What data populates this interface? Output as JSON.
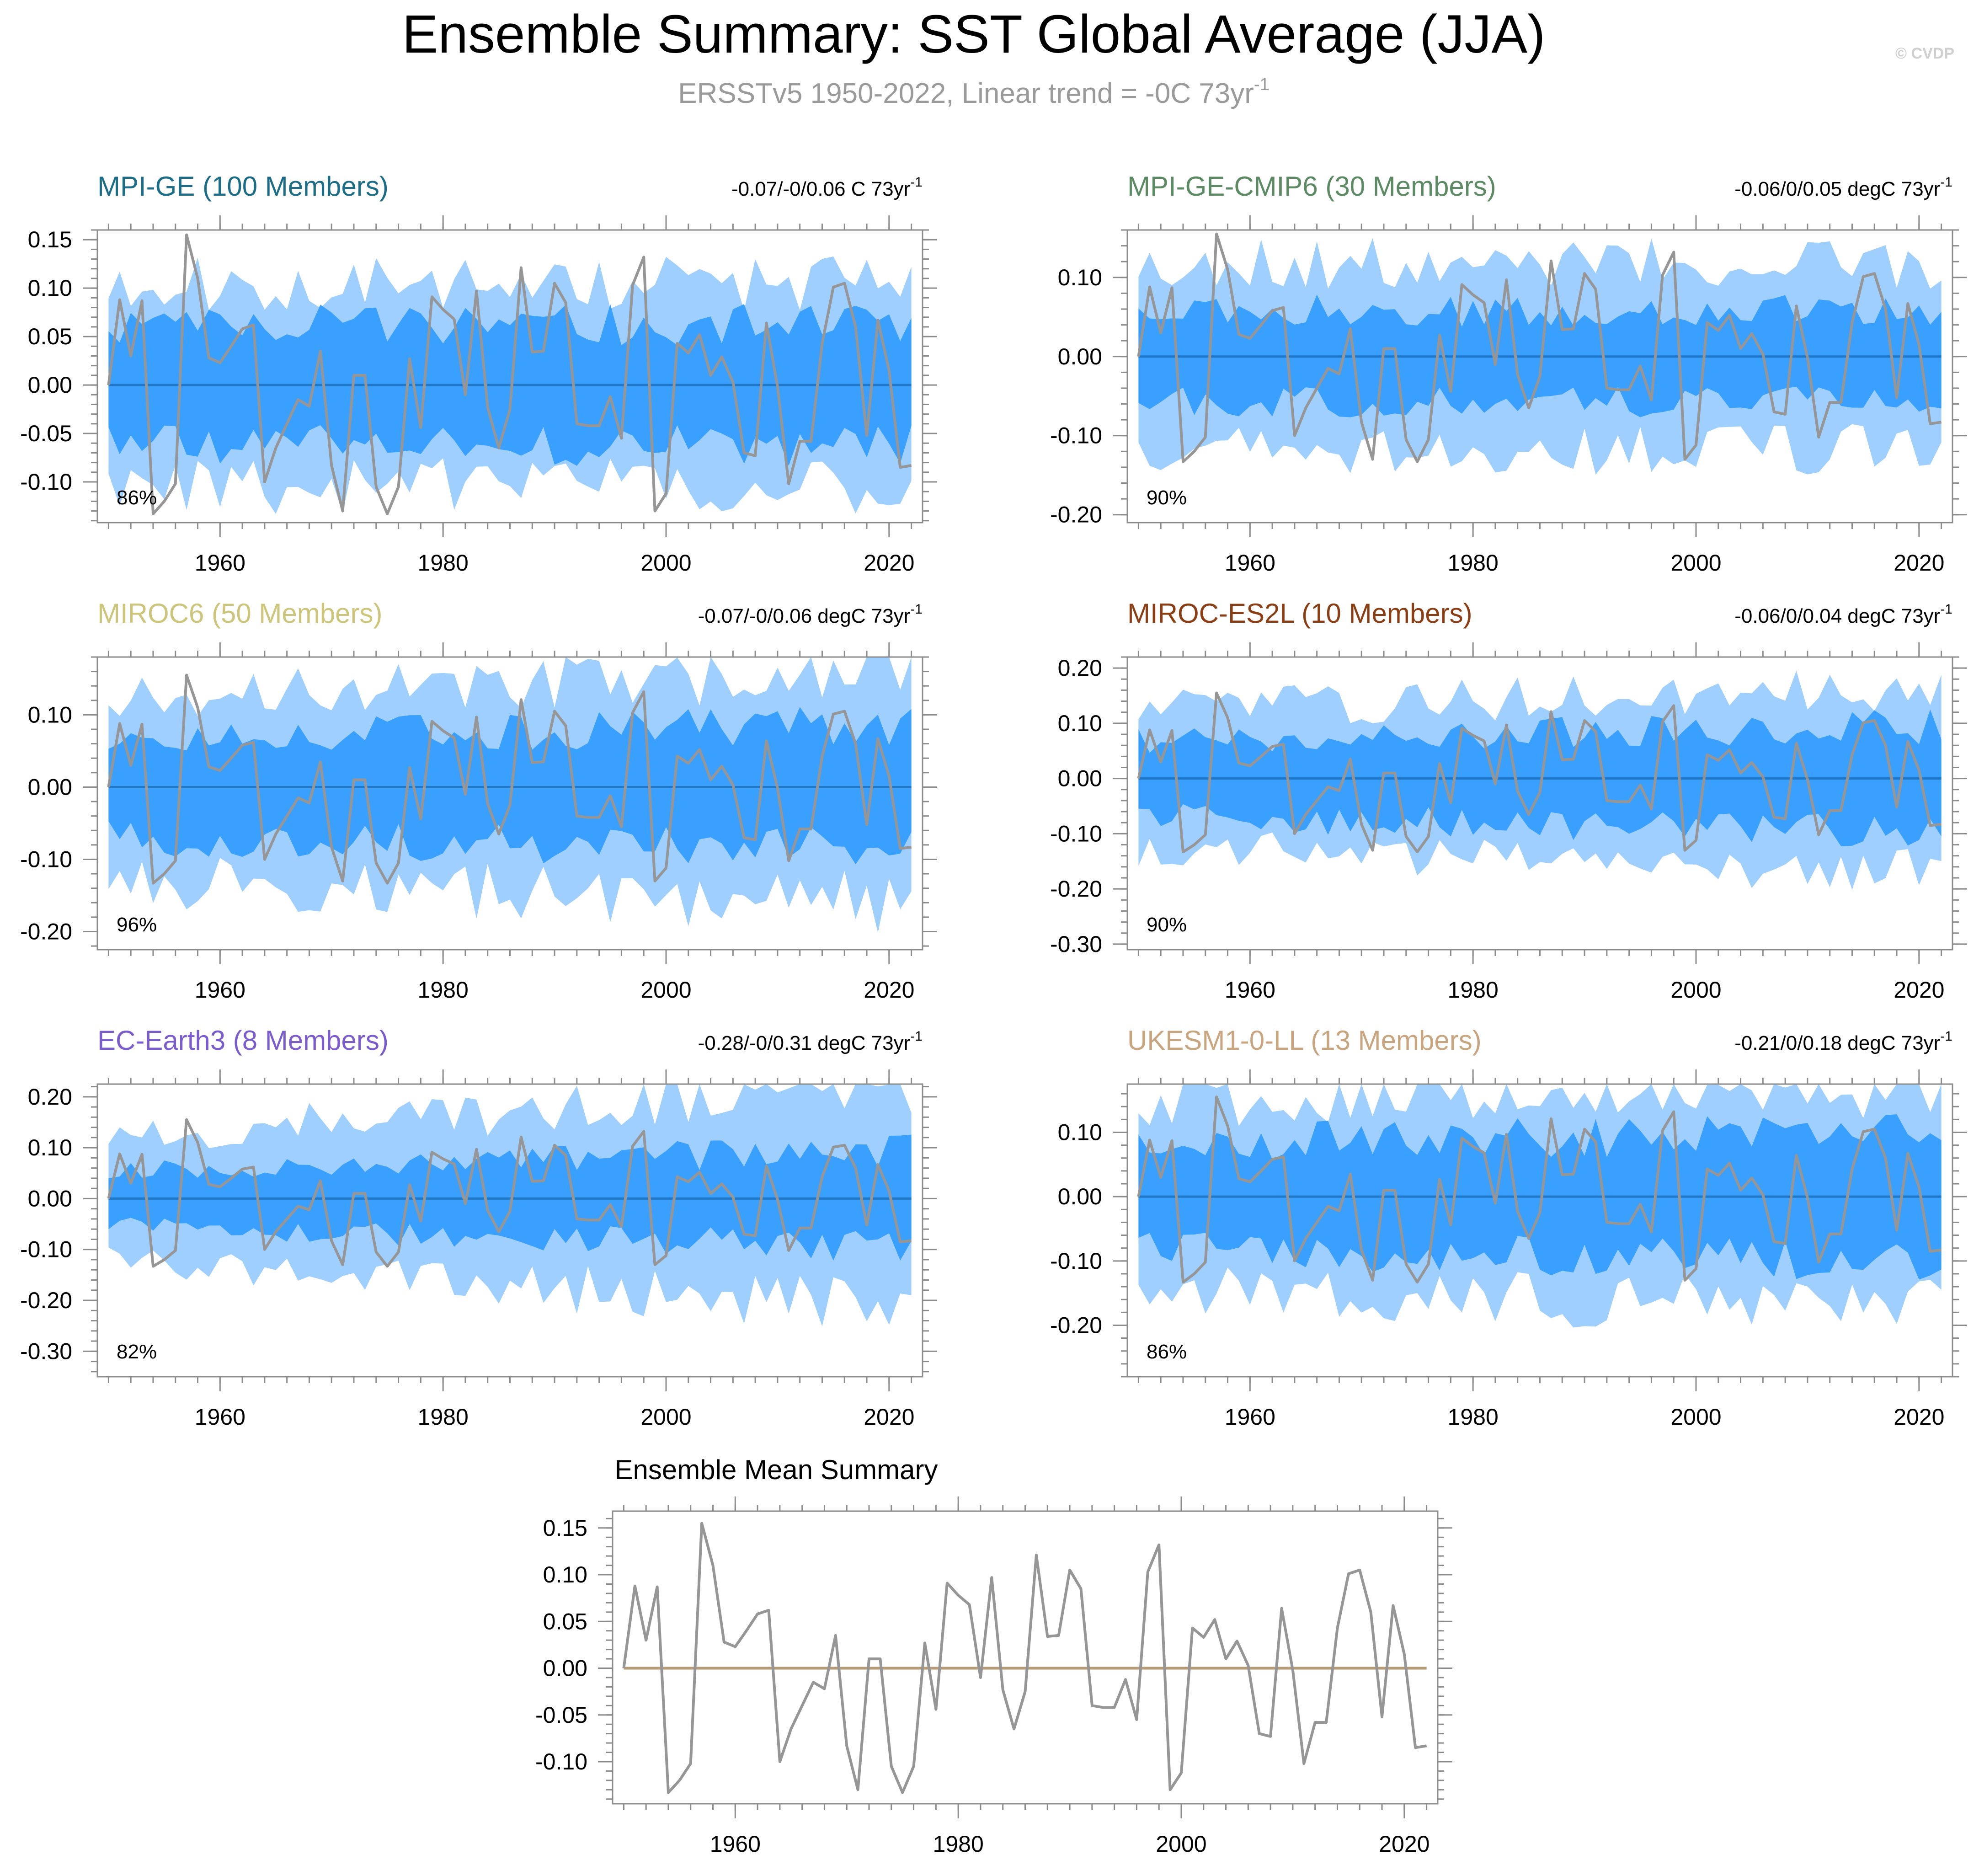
{
  "figure": {
    "title": "Ensemble Summary: SST Global Average (JJA)",
    "subtitle_main": "ERSSTv5 1950-2022, Linear trend = -0C 73yr",
    "subtitle_sup": "-1",
    "watermark": "© CVDP",
    "trend_sup": "-1"
  },
  "colors": {
    "outer_band": "#9ecfff",
    "inner_band": "#3aa0ff",
    "ensemble_mean_line": "#1f78c8",
    "observations_line": "#969696",
    "summary_zero_line": "#b79a76"
  },
  "chart_data": {
    "type": "line",
    "x": [
      1950,
      1951,
      1952,
      1953,
      1954,
      1955,
      1956,
      1957,
      1958,
      1959,
      1960,
      1961,
      1962,
      1963,
      1964,
      1965,
      1966,
      1967,
      1968,
      1969,
      1970,
      1971,
      1972,
      1973,
      1974,
      1975,
      1976,
      1977,
      1978,
      1979,
      1980,
      1981,
      1982,
      1983,
      1984,
      1985,
      1986,
      1987,
      1988,
      1989,
      1990,
      1991,
      1992,
      1993,
      1994,
      1995,
      1996,
      1997,
      1998,
      1999,
      2000,
      2001,
      2002,
      2003,
      2004,
      2005,
      2006,
      2007,
      2008,
      2009,
      2010,
      2011,
      2012,
      2013,
      2014,
      2015,
      2016,
      2017,
      2018,
      2019,
      2020,
      2021,
      2022
    ],
    "observations": {
      "name": "ERSSTv5",
      "values": [
        0.0,
        0.088,
        0.03,
        0.087,
        -0.133,
        -0.12,
        -0.102,
        0.155,
        0.11,
        0.028,
        0.023,
        0.04,
        0.058,
        0.062,
        -0.1,
        -0.065,
        -0.04,
        -0.015,
        -0.022,
        0.035,
        -0.083,
        -0.13,
        0.01,
        0.01,
        -0.105,
        -0.133,
        -0.105,
        0.027,
        -0.044,
        0.091,
        0.078,
        0.068,
        -0.01,
        0.097,
        -0.023,
        -0.065,
        -0.025,
        0.121,
        0.034,
        0.035,
        0.105,
        0.085,
        -0.04,
        -0.042,
        -0.042,
        -0.012,
        -0.055,
        0.103,
        0.132,
        -0.13,
        -0.112,
        0.043,
        0.033,
        0.052,
        0.01,
        0.029,
        0.003,
        -0.07,
        -0.073,
        0.064,
        -0.002,
        -0.102,
        -0.058,
        -0.058,
        0.043,
        0.101,
        0.105,
        0.06,
        -0.052,
        0.067,
        0.015,
        -0.085,
        -0.083
      ]
    },
    "x_axis": {
      "range": [
        1949,
        2023
      ],
      "ticks": [
        1960,
        1980,
        2000,
        2020
      ]
    },
    "panels": [
      {
        "id": "mpi-ge",
        "title": "MPI-GE (100 Members)",
        "title_color": "#1b6d88",
        "trend_label": "-0.07/-0/0.06 C 73yr",
        "percent_label": "86%",
        "ylim": [
          -0.142,
          0.16
        ],
        "yticks": [
          -0.1,
          -0.05,
          0.0,
          0.05,
          0.1,
          0.15
        ],
        "ytick_labels": [
          "-0.10",
          "-0.05",
          "0.00",
          "0.05",
          "0.10",
          "0.15"
        ],
        "outer_band": 0.105,
        "inner_band": 0.062,
        "growth": 0.0,
        "seed": 11
      },
      {
        "id": "mpi-ge-cmip6",
        "title": "MPI-GE-CMIP6 (30 Members)",
        "title_color": "#5c8a63",
        "trend_label": "-0.06/0/0.05 degC 73yr",
        "percent_label": "90%",
        "ylim": [
          -0.21,
          0.16
        ],
        "yticks": [
          -0.2,
          -0.1,
          0.0,
          0.1
        ],
        "ytick_labels": [
          "-0.20",
          "-0.10",
          "0.00",
          "0.10"
        ],
        "outer_band": 0.118,
        "inner_band": 0.058,
        "growth": 0.0,
        "seed": 23
      },
      {
        "id": "miroc6",
        "title": "MIROC6 (50 Members)",
        "title_color": "#cdc57a",
        "trend_label": "-0.07/-0/0.06 degC 73yr",
        "percent_label": "96%",
        "ylim": [
          -0.225,
          0.18
        ],
        "yticks": [
          -0.2,
          -0.1,
          0.0,
          0.1
        ],
        "ytick_labels": [
          "-0.20",
          "-0.10",
          "0.00",
          "0.10"
        ],
        "outer_band": 0.132,
        "inner_band": 0.07,
        "growth": 0.004,
        "seed": 37
      },
      {
        "id": "miroc-es2l",
        "title": "MIROC-ES2L (10 Members)",
        "title_color": "#8b3e14",
        "trend_label": "-0.06/0/0.04 degC 73yr",
        "percent_label": "90%",
        "ylim": [
          -0.31,
          0.22
        ],
        "yticks": [
          -0.3,
          -0.2,
          -0.1,
          0.0,
          0.1,
          0.2
        ],
        "ytick_labels": [
          "-0.30",
          "-0.20",
          "-0.10",
          "0.00",
          "0.10",
          "0.20"
        ],
        "outer_band": 0.125,
        "inner_band": 0.07,
        "growth": 0.006,
        "seed": 41
      },
      {
        "id": "ec-earth3",
        "title": "EC-Earth3 (8 Members)",
        "title_color": "#7b5ccf",
        "trend_label": "-0.28/-0/0.31 degC 73yr",
        "percent_label": "82%",
        "ylim": [
          -0.35,
          0.225
        ],
        "yticks": [
          -0.3,
          -0.2,
          -0.1,
          0.0,
          0.1,
          0.2
        ],
        "ytick_labels": [
          "-0.30",
          "-0.20",
          "-0.10",
          "0.00",
          "0.10",
          "0.20"
        ],
        "outer_band": 0.125,
        "inner_band": 0.055,
        "growth": 0.013,
        "seed": 53
      },
      {
        "id": "ukesm1-0-ll",
        "title": "UKESM1-0-LL (13 Members)",
        "title_color": "#c9a57f",
        "trend_label": "-0.21/0/0.18 degC 73yr",
        "percent_label": "86%",
        "ylim": [
          -0.28,
          0.175
        ],
        "yticks": [
          -0.2,
          -0.1,
          0.0,
          0.1
        ],
        "ytick_labels": [
          "-0.20",
          "-0.10",
          "0.00",
          "0.10"
        ],
        "outer_band": 0.15,
        "inner_band": 0.085,
        "growth": 0.003,
        "seed": 67
      }
    ],
    "mean_summary": {
      "title": "Ensemble Mean Summary",
      "ylim": [
        -0.145,
        0.168
      ],
      "yticks": [
        -0.1,
        -0.05,
        0.0,
        0.05,
        0.1,
        0.15
      ],
      "ytick_labels": [
        "-0.10",
        "-0.05",
        "0.00",
        "0.05",
        "0.10",
        "0.15"
      ],
      "zero_line_value": 0.0
    }
  }
}
